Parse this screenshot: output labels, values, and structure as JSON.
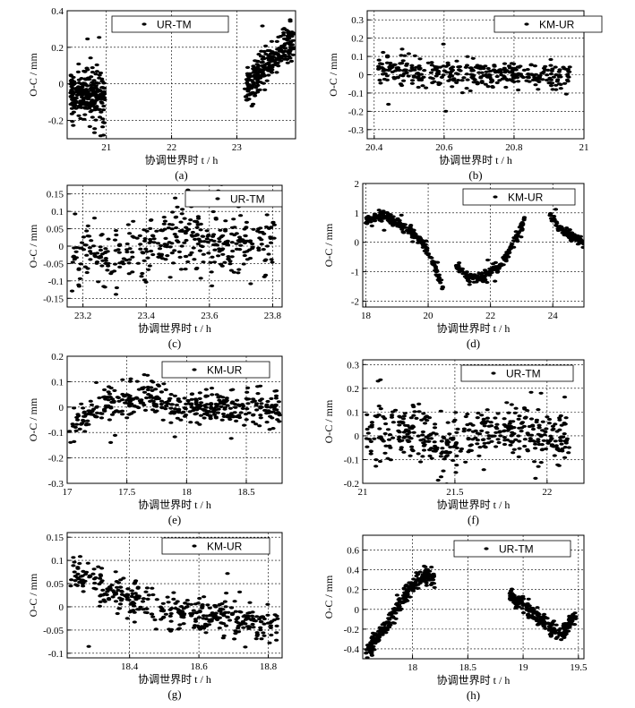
{
  "chart_data": [
    {
      "id": "a",
      "type": "scatter",
      "sublabel": "(a)",
      "legend": "UR-TM",
      "xlabel": "协调世界时 t / h",
      "ylabel": "O-C / mm",
      "xlim": [
        20.4,
        23.9
      ],
      "ylim": [
        -0.3,
        0.4
      ],
      "xticks": [
        21,
        22,
        23
      ],
      "yticks": [
        -0.2,
        0,
        0.2,
        0.4
      ],
      "segments": [
        {
          "x0": 20.45,
          "x1": 20.98,
          "anchors": [
            [
              20.45,
              -0.05
            ],
            [
              20.98,
              -0.08
            ]
          ],
          "spread": 0.09,
          "count": 260
        },
        {
          "x0": 23.12,
          "x1": 23.88,
          "anchors": [
            [
              23.12,
              -0.05
            ],
            [
              23.5,
              0.12
            ],
            [
              23.88,
              0.25
            ]
          ],
          "spread": 0.07,
          "count": 260
        }
      ]
    },
    {
      "id": "b",
      "type": "scatter",
      "sublabel": "(b)",
      "legend": "KM-UR",
      "xlabel": "协调世界时 t / h",
      "ylabel": "O-C / mm",
      "xlim": [
        20.38,
        21.0
      ],
      "ylim": [
        -0.35,
        0.35
      ],
      "xticks": [
        20.4,
        20.6,
        20.8,
        21
      ],
      "yticks": [
        -0.3,
        -0.2,
        -0.1,
        0,
        0.1,
        0.2,
        0.3
      ],
      "segments": [
        {
          "x0": 20.41,
          "x1": 20.96,
          "anchors": [
            [
              20.41,
              0.04
            ],
            [
              20.55,
              0.01
            ],
            [
              20.75,
              0.0
            ],
            [
              20.96,
              0.0
            ]
          ],
          "spread": 0.05,
          "count": 360
        }
      ]
    },
    {
      "id": "c",
      "type": "scatter",
      "sublabel": "(c)",
      "legend": "UR-TM",
      "xlabel": "协调世界时 t / h",
      "ylabel": "O-C / mm",
      "xlim": [
        23.15,
        23.83
      ],
      "ylim": [
        -0.175,
        0.175
      ],
      "xticks": [
        23.2,
        23.4,
        23.6,
        23.8
      ],
      "yticks": [
        -0.15,
        -0.1,
        -0.05,
        0,
        0.05,
        0.1,
        0.15
      ],
      "segments": [
        {
          "x0": 23.16,
          "x1": 23.81,
          "anchors": [
            [
              23.16,
              -0.03
            ],
            [
              23.35,
              -0.02
            ],
            [
              23.5,
              0.03
            ],
            [
              23.65,
              0.0
            ],
            [
              23.81,
              0.02
            ]
          ],
          "spread": 0.06,
          "count": 380
        }
      ]
    },
    {
      "id": "d",
      "type": "scatter",
      "sublabel": "(d)",
      "legend": "KM-UR",
      "xlabel": "协调世界时 t / h",
      "ylabel": "O-C / mm",
      "xlim": [
        17.9,
        25.0
      ],
      "ylim": [
        -2.2,
        2.0
      ],
      "xticks": [
        18,
        20,
        22,
        24
      ],
      "yticks": [
        -2,
        -1,
        0,
        1,
        2
      ],
      "segments": [
        {
          "x0": 18.0,
          "x1": 20.5,
          "anchors": [
            [
              18.0,
              0.7
            ],
            [
              18.6,
              0.95
            ],
            [
              19.2,
              0.5
            ],
            [
              19.6,
              0.3
            ],
            [
              20.0,
              -0.3
            ],
            [
              20.5,
              -1.6
            ]
          ],
          "spread": 0.12,
          "count": 220
        },
        {
          "x0": 20.9,
          "x1": 23.1,
          "anchors": [
            [
              20.9,
              -0.8
            ],
            [
              21.3,
              -1.2
            ],
            [
              21.8,
              -1.2
            ],
            [
              22.3,
              -0.8
            ],
            [
              22.8,
              0.1
            ],
            [
              23.1,
              0.8
            ]
          ],
          "spread": 0.12,
          "count": 200
        },
        {
          "x0": 23.9,
          "x1": 25.0,
          "anchors": [
            [
              23.9,
              1.0
            ],
            [
              24.2,
              0.5
            ],
            [
              24.6,
              0.2
            ],
            [
              25.0,
              0.0
            ]
          ],
          "spread": 0.1,
          "count": 110
        }
      ]
    },
    {
      "id": "e",
      "type": "scatter",
      "sublabel": "(e)",
      "legend": "KM-UR",
      "xlabel": "协调世界时 t / h",
      "ylabel": "O-C / mm",
      "xlim": [
        17.0,
        18.8
      ],
      "ylim": [
        -0.3,
        0.2
      ],
      "xticks": [
        17,
        17.5,
        18,
        18.5
      ],
      "yticks": [
        -0.3,
        -0.2,
        -0.1,
        0,
        0.1,
        0.2
      ],
      "segments": [
        {
          "x0": 17.02,
          "x1": 18.78,
          "anchors": [
            [
              17.02,
              -0.08
            ],
            [
              17.2,
              -0.02
            ],
            [
              17.5,
              0.03
            ],
            [
              17.7,
              0.05
            ],
            [
              17.8,
              0.0
            ],
            [
              18.3,
              0.0
            ],
            [
              18.78,
              0.0
            ]
          ],
          "spread": 0.045,
          "count": 420
        }
      ]
    },
    {
      "id": "f",
      "type": "scatter",
      "sublabel": "(f)",
      "legend": "UR-TM",
      "xlabel": "协调世界时 t / h",
      "ylabel": "O-C / mm",
      "xlim": [
        21.0,
        22.2
      ],
      "ylim": [
        -0.2,
        0.32
      ],
      "xticks": [
        21,
        21.5,
        22
      ],
      "yticks": [
        -0.2,
        -0.1,
        0,
        0.1,
        0.2,
        0.3
      ],
      "segments": [
        {
          "x0": 21.02,
          "x1": 22.12,
          "anchors": [
            [
              21.02,
              0.0
            ],
            [
              21.3,
              0.02
            ],
            [
              21.45,
              -0.06
            ],
            [
              21.6,
              0.0
            ],
            [
              21.9,
              0.02
            ],
            [
              22.12,
              -0.02
            ]
          ],
          "spread": 0.07,
          "count": 420
        }
      ]
    },
    {
      "id": "g",
      "type": "scatter",
      "sublabel": "(g)",
      "legend": "KM-UR",
      "xlabel": "协调世界时 t / h",
      "ylabel": "O-C / mm",
      "xlim": [
        18.22,
        18.84
      ],
      "ylim": [
        -0.11,
        0.16
      ],
      "xticks": [
        18.4,
        18.6,
        18.8
      ],
      "yticks": [
        -0.1,
        -0.05,
        0,
        0.05,
        0.1,
        0.15
      ],
      "segments": [
        {
          "x0": 18.23,
          "x1": 18.83,
          "anchors": [
            [
              18.23,
              0.08
            ],
            [
              18.3,
              0.05
            ],
            [
              18.4,
              0.02
            ],
            [
              18.5,
              -0.01
            ],
            [
              18.6,
              -0.02
            ],
            [
              18.7,
              -0.02
            ],
            [
              18.83,
              -0.05
            ]
          ],
          "spread": 0.025,
          "count": 380
        }
      ]
    },
    {
      "id": "h",
      "type": "scatter",
      "sublabel": "(h)",
      "legend": "UR-TM",
      "xlabel": "协调世界时 t / h",
      "ylabel": "O-C / mm",
      "xlim": [
        17.55,
        19.55
      ],
      "ylim": [
        -0.5,
        0.75
      ],
      "xticks": [
        18,
        18.5,
        19,
        19.5
      ],
      "yticks": [
        -0.4,
        -0.2,
        0,
        0.2,
        0.4,
        0.6
      ],
      "segments": [
        {
          "x0": 17.58,
          "x1": 18.2,
          "anchors": [
            [
              17.58,
              -0.45
            ],
            [
              17.8,
              -0.1
            ],
            [
              18.0,
              0.25
            ],
            [
              18.15,
              0.38
            ],
            [
              18.2,
              0.3
            ]
          ],
          "spread": 0.06,
          "count": 260
        },
        {
          "x0": 18.88,
          "x1": 19.48,
          "anchors": [
            [
              18.88,
              0.15
            ],
            [
              19.0,
              0.05
            ],
            [
              19.2,
              -0.15
            ],
            [
              19.35,
              -0.25
            ],
            [
              19.48,
              -0.05
            ]
          ],
          "spread": 0.05,
          "count": 240
        }
      ]
    }
  ]
}
